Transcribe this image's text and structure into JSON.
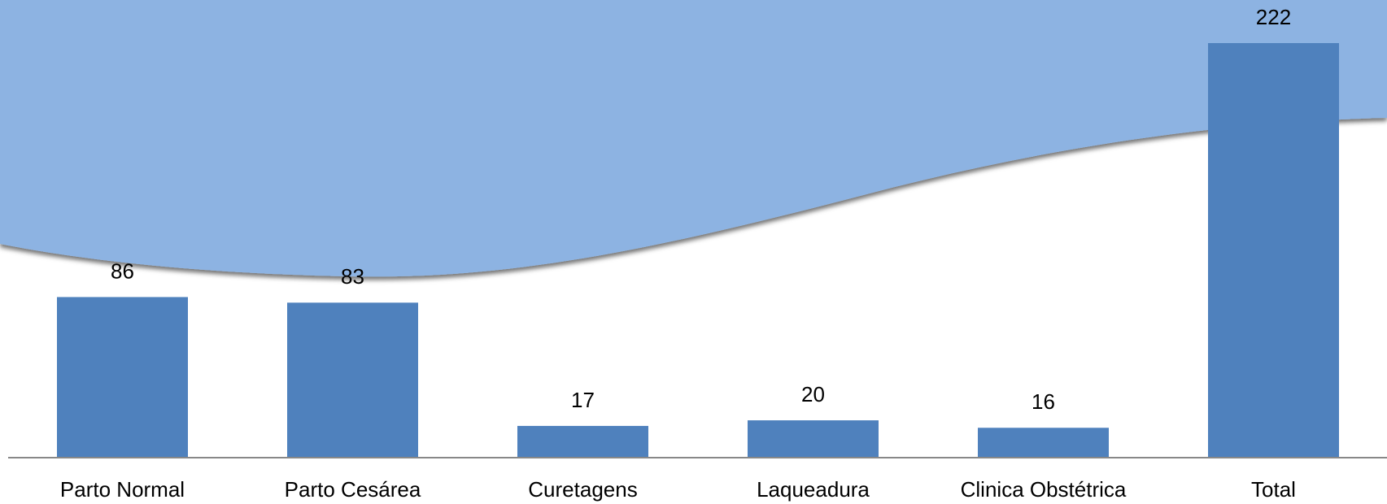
{
  "chart_data": {
    "type": "bar",
    "categories": [
      "Parto Normal",
      "Parto Cesárea",
      "Curetagens",
      "Laqueadura",
      "Clinica Obstétrica",
      "Total"
    ],
    "values": [
      86,
      83,
      17,
      20,
      16,
      222
    ],
    "color": "#4f81bd"
  }
}
